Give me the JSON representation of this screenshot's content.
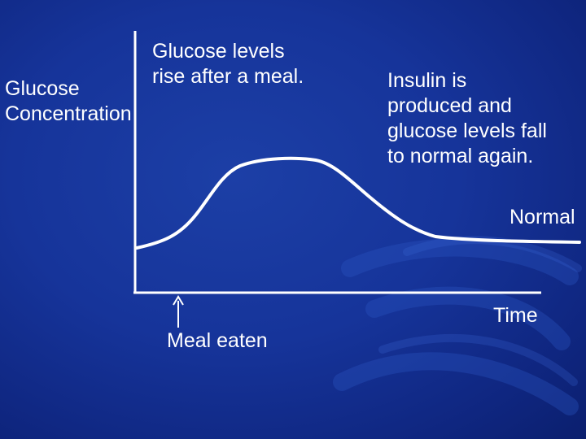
{
  "diagram": {
    "y_axis_label": [
      "Glucose",
      "Concentration"
    ],
    "x_axis_label": "Time",
    "annotation_rise": [
      "Glucose levels",
      "rise after a meal."
    ],
    "annotation_insulin": [
      "Insulin is",
      "produced and",
      "glucose levels fall",
      "to normal again."
    ],
    "normal_label": "Normal",
    "meal_label": "Meal eaten"
  },
  "colors": {
    "background": "#16349a",
    "foreground": "#ffffff"
  }
}
